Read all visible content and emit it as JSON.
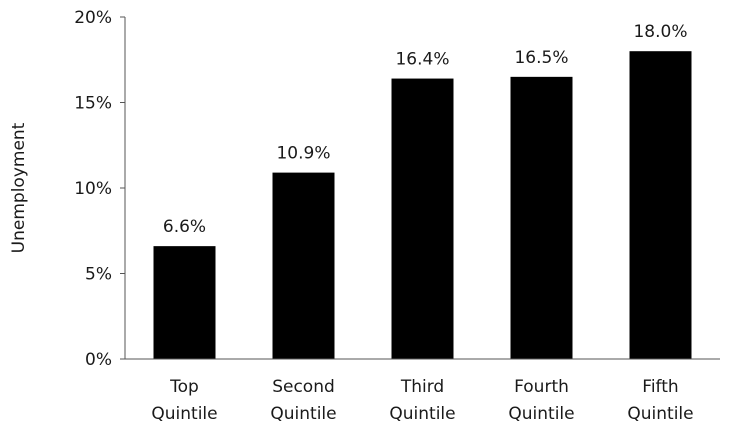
{
  "chart_data": {
    "type": "bar",
    "categories": [
      [
        "Top",
        "Quintile"
      ],
      [
        "Second",
        "Quintile"
      ],
      [
        "Third",
        "Quintile"
      ],
      [
        "Fourth",
        "Quintile"
      ],
      [
        "Fifth",
        "Quintile"
      ]
    ],
    "values": [
      6.6,
      10.9,
      16.4,
      16.5,
      18.0
    ],
    "data_labels": [
      "6.6%",
      "10.9%",
      "16.4%",
      "16.5%",
      "18.0%"
    ],
    "ylabel": "Unemployment",
    "ylim": [
      0,
      20
    ],
    "yticks": [
      {
        "value": 0,
        "label": "0%"
      },
      {
        "value": 5,
        "label": "5%"
      },
      {
        "value": 10,
        "label": "10%"
      },
      {
        "value": 15,
        "label": "15%"
      },
      {
        "value": 20,
        "label": "20%"
      }
    ],
    "grid": false,
    "legend": "none",
    "bar_color": "#000000",
    "axis_color": "#555555"
  }
}
